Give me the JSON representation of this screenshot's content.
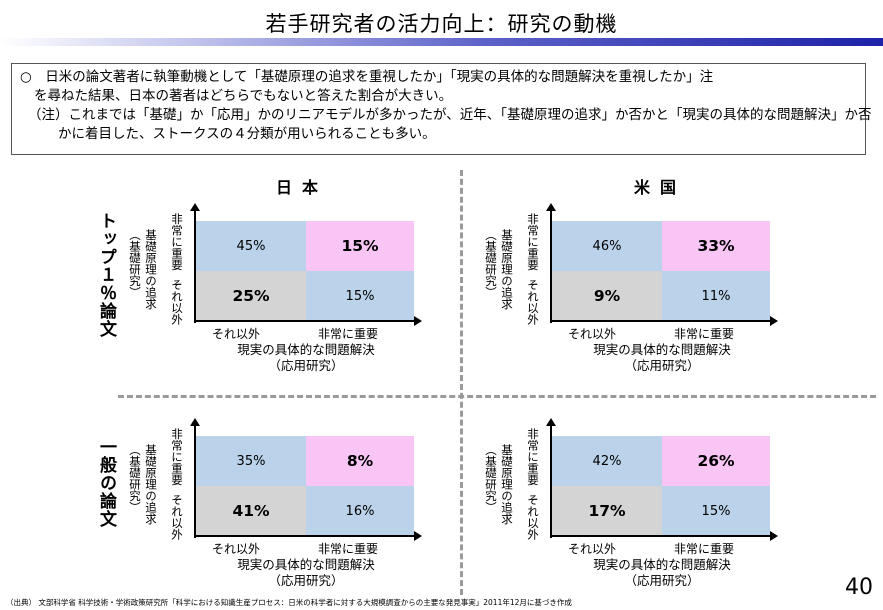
{
  "title": "若手研究者の活力向上：研究の動機",
  "note": {
    "line1": "○　日米の論文著者に執筆動機として「基礎原理の追求を重視したか」「現実の具体的な問題解決を重視したか」注",
    "line2": "を尋ねた結果、日本の著者はどちらでもないと答えた割合が大きい。",
    "line3": "（注）これまでは「基礎」か「応用」かのリニアモデルが多かったが、近年、「基礎原理の追求」か否かと「現実の具体的な問題解決」か否",
    "line4": "かに着目した、ストークスの４分類が用いられることも多い。"
  },
  "columns": {
    "japan": "日本",
    "us": "米国"
  },
  "rows": {
    "top": "トップ１％論文",
    "general": "一般の論文"
  },
  "axis": {
    "y_main": "基礎原理の追求",
    "y_sub": "（基礎研究）",
    "y_high": "非常に重要",
    "y_low": "それ以外",
    "x_low": "それ以外",
    "x_high": "非常に重要",
    "x_main": "現実の具体的な問題解決",
    "x_sub": "（応用研究）"
  },
  "panels": {
    "top_japan": {
      "tl": "45%",
      "tr": "15%",
      "bl": "25%",
      "br": "15%"
    },
    "top_us": {
      "tl": "46%",
      "tr": "33%",
      "bl": "9%",
      "br": "11%"
    },
    "gen_japan": {
      "tl": "35%",
      "tr": "8%",
      "bl": "41%",
      "br": "16%"
    },
    "gen_us": {
      "tl": "42%",
      "tr": "26%",
      "bl": "17%",
      "br": "15%"
    }
  },
  "colors": {
    "blue": "#bad3ea",
    "pink": "#f8c5f4",
    "grey": "#d4d4d4"
  },
  "page_number": "40",
  "source": "（出典） 文部科学省 科学技術・学術政策研究所「科学における知識生産プロセス：日米の科学者に対する大規模調査からの主要な発見事実」2011年12月に基づき作成"
}
